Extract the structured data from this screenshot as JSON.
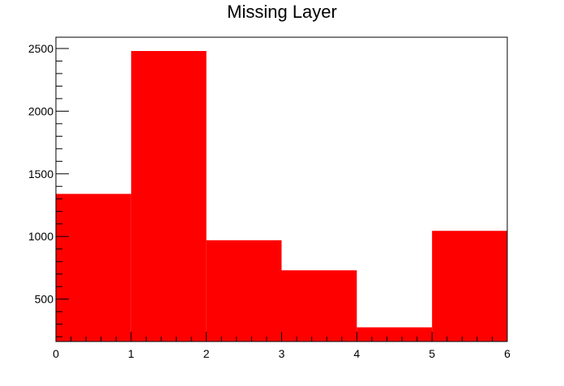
{
  "chart_data": {
    "type": "bar",
    "title": "Missing Layer",
    "xlabel": "",
    "ylabel": "",
    "bin_edges": [
      0,
      1,
      2,
      3,
      4,
      5,
      6
    ],
    "values": [
      1340,
      2480,
      970,
      730,
      275,
      1045
    ],
    "xlim": [
      0,
      6
    ],
    "ylim": [
      162,
      2590
    ],
    "x_ticks": [
      0,
      1,
      2,
      3,
      4,
      5,
      6
    ],
    "y_ticks": [
      500,
      1000,
      1500,
      2000,
      2500
    ],
    "x_tick_labels": [
      "0",
      "1",
      "2",
      "3",
      "4",
      "5",
      "6"
    ],
    "y_tick_labels": [
      "500",
      "1000",
      "1500",
      "2000",
      "2500"
    ],
    "bar_color": "#ff0000",
    "grid": false,
    "legend": "none"
  }
}
